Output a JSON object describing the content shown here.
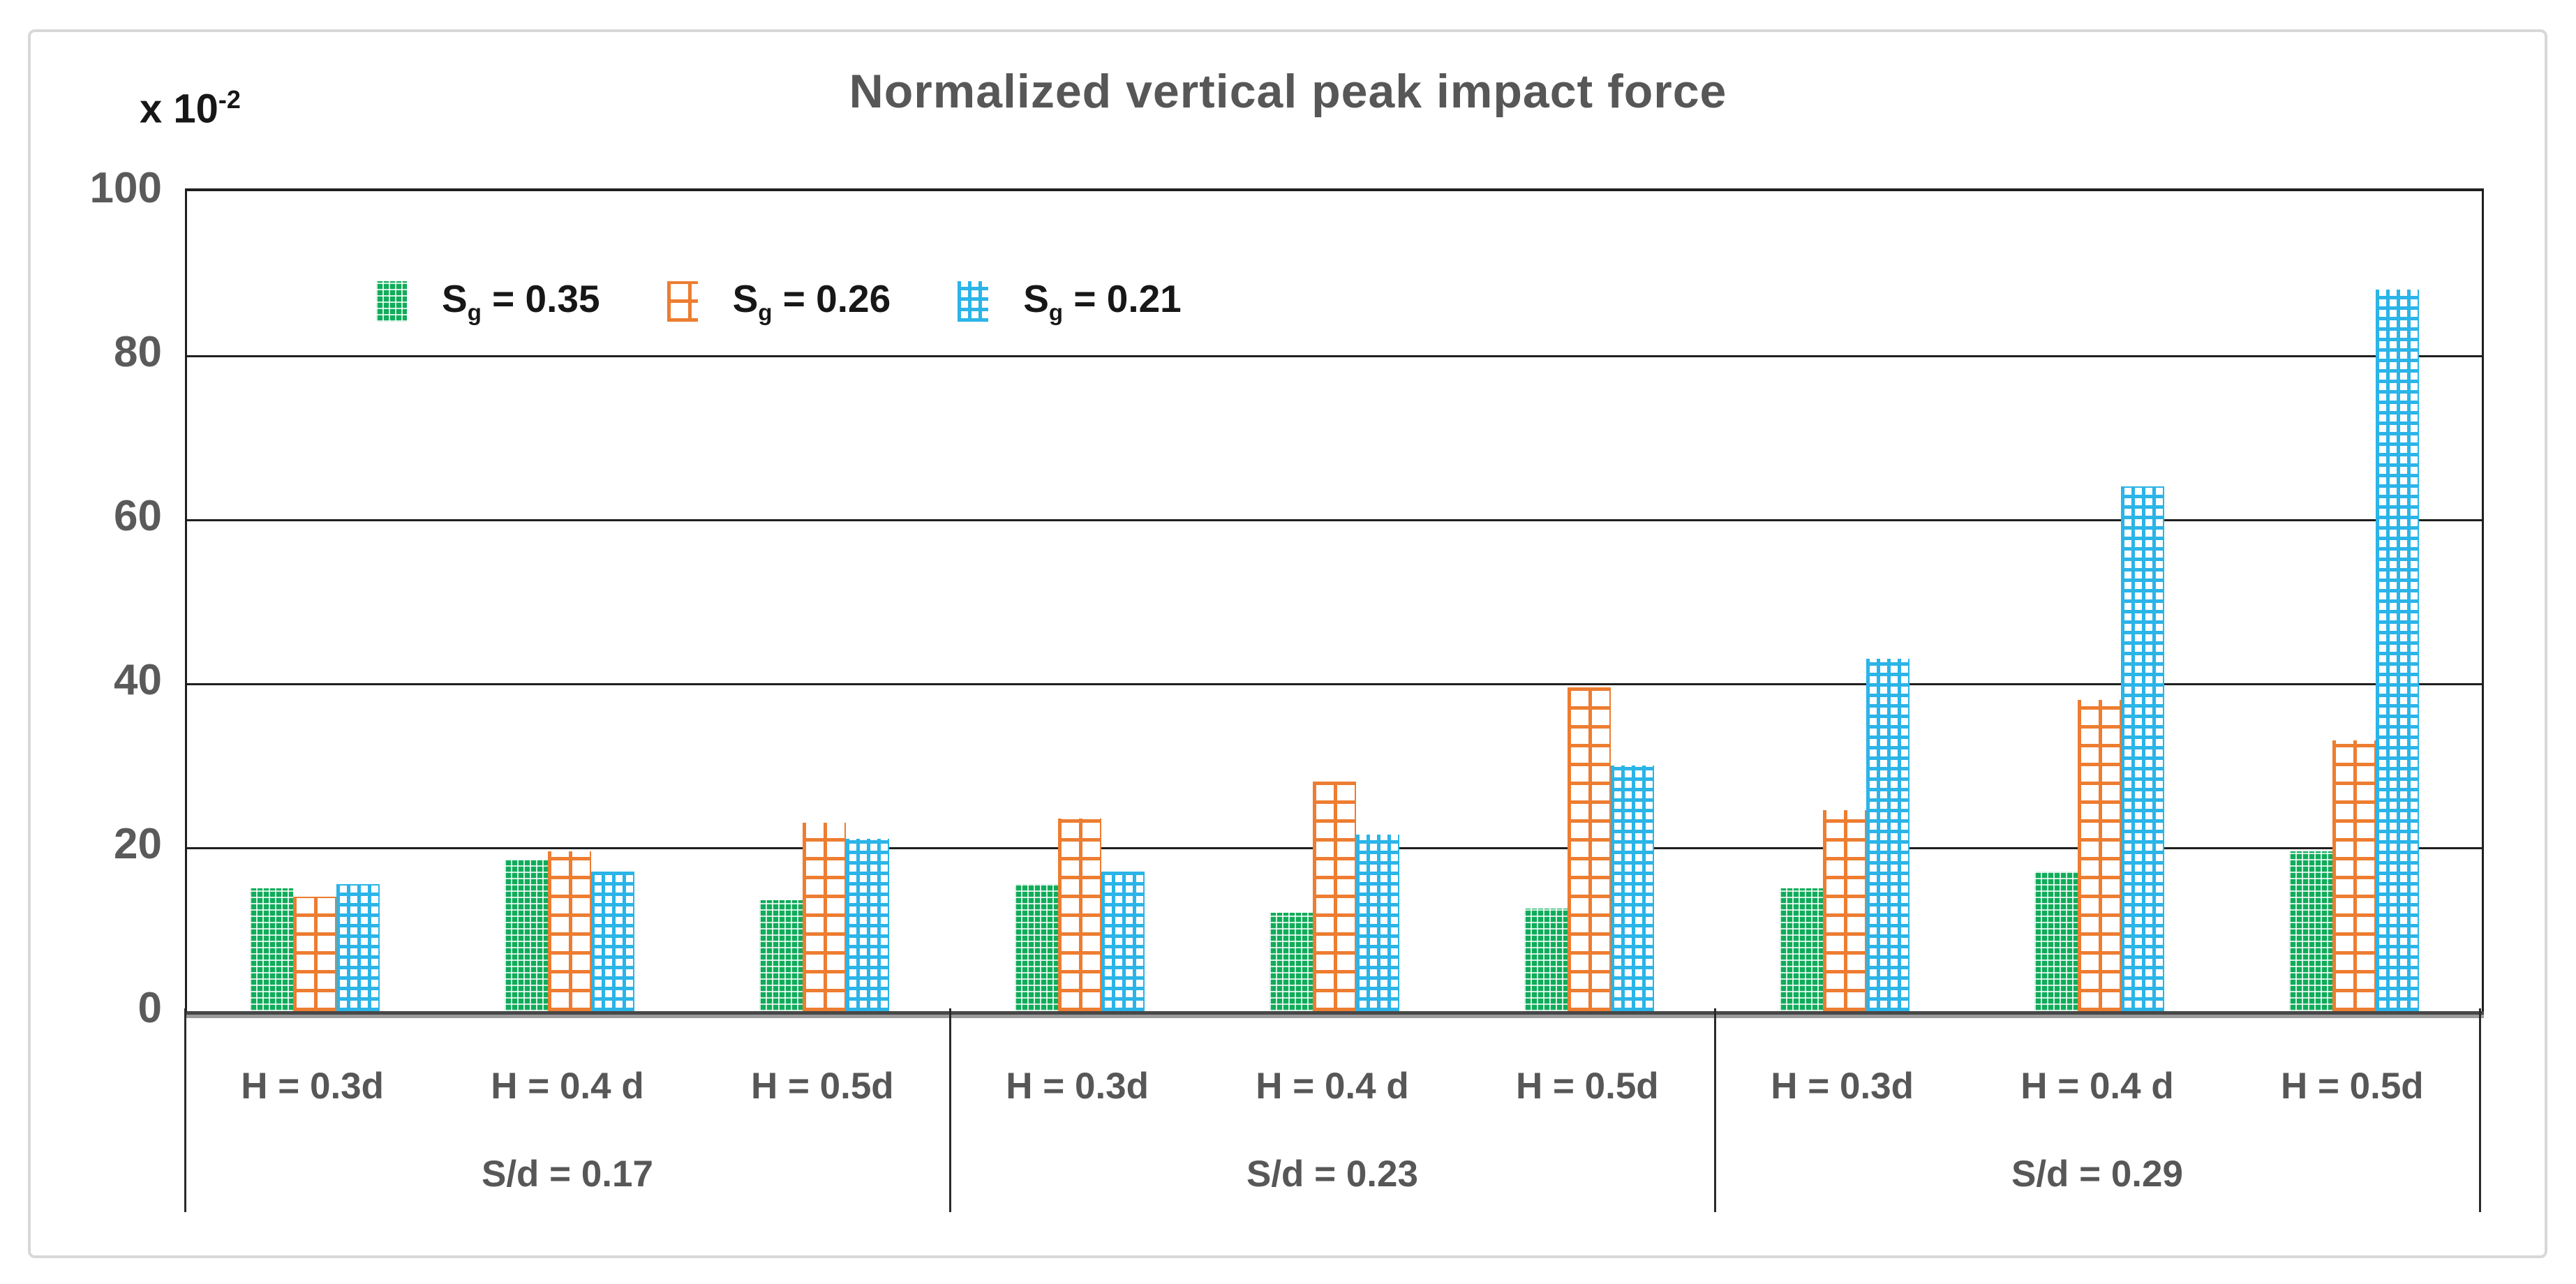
{
  "figure": {
    "background_color": "#FFFFFF",
    "frame_color": "#D8D8D8"
  },
  "chart_data": {
    "type": "bar",
    "title": "Normalized vertical peak impact force",
    "title_color": "#575757",
    "y_axis_multiplier": {
      "main": "x 10",
      "sup": "-2"
    },
    "ylabel": "",
    "xlabel": "",
    "ylim": [
      0,
      100
    ],
    "yticks": [
      100,
      80,
      60,
      40,
      20,
      0
    ],
    "grid": "horizontal-black-lines",
    "legend_position": "inside-top-left",
    "gridline_color": "#1F1F1F",
    "baseline_colors": [
      "#474747",
      "#9B9B9B"
    ],
    "groups": [
      {
        "label": "S/d = 0.17",
        "categories": [
          "H = 0.3d",
          "H = 0.4 d",
          "H = 0.5d"
        ]
      },
      {
        "label": "S/d = 0.23",
        "categories": [
          "H = 0.3d",
          "H = 0.4 d",
          "H = 0.5d"
        ]
      },
      {
        "label": "S/d = 0.29",
        "categories": [
          "H = 0.3d",
          "H = 0.4 d",
          "H = 0.5d"
        ]
      }
    ],
    "series": [
      {
        "name": "Sg = 0.35",
        "legend": {
          "main": "S",
          "sub": "g",
          "rest": " = 0.35"
        },
        "color": "#10AC5A",
        "pattern": "weave",
        "values": [
          15,
          18.5,
          13.5,
          15.5,
          12,
          12.5,
          15,
          17,
          19.5
        ]
      },
      {
        "name": "Sg = 0.26",
        "legend": {
          "main": "S",
          "sub": "g",
          "rest": " = 0.26"
        },
        "color": "#ED7D31",
        "pattern": "brick",
        "values": [
          14,
          19.5,
          23,
          23.5,
          28,
          39.5,
          24.5,
          38,
          33
        ]
      },
      {
        "name": "Sg = 0.21",
        "legend": {
          "main": "S",
          "sub": "g",
          "rest": " = 0.21"
        },
        "color": "#2BB4E8",
        "pattern": "grid",
        "values": [
          15.5,
          17,
          21,
          17,
          21.5,
          30,
          43,
          64,
          88
        ]
      }
    ]
  }
}
